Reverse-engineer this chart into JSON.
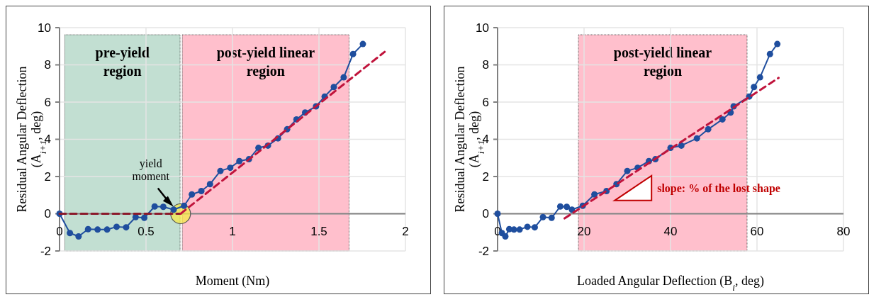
{
  "chart_data": [
    {
      "type": "line",
      "xlabel": "Moment (Nm)",
      "ylabel": "Residual Angular Deflection (A$_{i+1}$, deg)",
      "xlim": [
        0,
        2
      ],
      "xticks": [
        0,
        0.5,
        1,
        1.5,
        2
      ],
      "ylim": [
        -2,
        10
      ],
      "yticks": [
        -2,
        0,
        2,
        4,
        6,
        8,
        10
      ],
      "grid": true,
      "series": [
        {
          "color": "#1f4e9e",
          "marker": "circle",
          "x": [
            0,
            0.06,
            0.11,
            0.165,
            0.22,
            0.275,
            0.33,
            0.385,
            0.44,
            0.49,
            0.55,
            0.6,
            0.66,
            0.72,
            0.765,
            0.82,
            0.87,
            0.93,
            0.987,
            1.04,
            1.095,
            1.15,
            1.205,
            1.263,
            1.316,
            1.37,
            1.42,
            1.483,
            1.533,
            1.586,
            1.643,
            1.697,
            1.754
          ],
          "values": [
            0,
            -1.04,
            -1.22,
            -0.83,
            -0.85,
            -0.85,
            -0.7,
            -0.73,
            -0.18,
            -0.22,
            0.39,
            0.37,
            0.22,
            0.43,
            1.04,
            1.22,
            1.59,
            2.3,
            2.47,
            2.83,
            2.93,
            3.54,
            3.66,
            4.05,
            4.54,
            5.07,
            5.44,
            5.77,
            6.3,
            6.81,
            7.33,
            8.58,
            9.12
          ]
        },
        {
          "color": "#8b1a2b",
          "line_style": "dashed",
          "x": [
            0,
            0.7
          ],
          "values": [
            0,
            0
          ]
        },
        {
          "color": "#c0143c",
          "marker": "none",
          "line_style": "dashed",
          "x": [
            0.7,
            1.88
          ],
          "values": [
            0,
            8.7
          ]
        }
      ],
      "bands": [
        {
          "axis": "x",
          "from": 0.03,
          "to": 0.697,
          "label": "pre-yield region",
          "color": "#c2dfd2"
        },
        {
          "axis": "x",
          "from": 0.71,
          "to": 1.674,
          "label": "post-yield linear region",
          "color": "#ffbfcc"
        }
      ],
      "annotations": [
        {
          "text": "yield moment",
          "x": 0.7,
          "y": 0
        }
      ]
    },
    {
      "type": "line",
      "xlabel": "Loaded Angular Deflection (B$_{i}$, deg)",
      "ylabel": "Residual Angular Deflection (A$_{i+1}$, deg)",
      "xlim": [
        0,
        80
      ],
      "xticks": [
        0,
        20,
        40,
        60,
        80
      ],
      "ylim": [
        -2,
        10
      ],
      "yticks": [
        -2,
        0,
        2,
        4,
        6,
        8,
        10
      ],
      "grid": true,
      "series": [
        {
          "color": "#1f4e9e",
          "marker": "circle",
          "x": [
            0,
            1.0,
            1.8,
            2.7,
            3.8,
            5.1,
            6.9,
            8.6,
            10.5,
            12.5,
            14.5,
            16.0,
            17.2,
            19.7,
            22.4,
            25.2,
            27.5,
            30,
            32.4,
            35,
            36.5,
            40,
            42.5,
            46.1,
            48.7,
            52.0,
            53.9,
            54.6,
            58.2,
            59.3,
            60.7,
            63.0,
            64.7
          ],
          "values": [
            0,
            -1.04,
            -1.22,
            -0.83,
            -0.85,
            -0.85,
            -0.7,
            -0.73,
            -0.18,
            -0.22,
            0.39,
            0.37,
            0.22,
            0.43,
            1.04,
            1.22,
            1.59,
            2.3,
            2.47,
            2.83,
            2.93,
            3.54,
            3.66,
            4.05,
            4.54,
            5.07,
            5.44,
            5.77,
            6.3,
            6.81,
            7.33,
            8.58,
            9.12
          ]
        },
        {
          "color": "#c0143c",
          "marker": "none",
          "line_style": "dashed",
          "x": [
            15.5,
            65
          ],
          "values": [
            -0.25,
            7.3
          ]
        }
      ],
      "bands": [
        {
          "axis": "x",
          "from": 18.7,
          "to": 57.7,
          "label": "post-yield linear region",
          "color": "#ffbfcc"
        }
      ],
      "annotations": [
        "slope: % of the lost shape"
      ]
    }
  ]
}
